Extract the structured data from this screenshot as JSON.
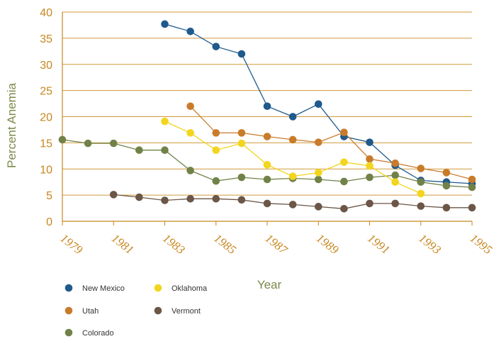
{
  "chart_data": {
    "type": "line",
    "title": "",
    "xlabel": "Year",
    "ylabel": "Percent Anemia",
    "xlim": [
      1979,
      1995
    ],
    "ylim": [
      0,
      40
    ],
    "x_ticks": [
      "1979",
      "1981",
      "1983",
      "1985",
      "1987",
      "1989",
      "1991",
      "1993",
      "1995"
    ],
    "y_ticks": [
      "0",
      "5",
      "10",
      "15",
      "20",
      "25",
      "30",
      "35",
      "40"
    ],
    "grid": "horizontal",
    "legend_position": "bottom-left",
    "series": [
      {
        "name": "New Mexico",
        "color": "#1f5a8c",
        "x": [
          1983,
          1984,
          1985,
          1986,
          1987,
          1988,
          1989,
          1990,
          1991,
          1992,
          1993,
          1994,
          1995
        ],
        "y": [
          37.7,
          36.3,
          33.4,
          32.0,
          22.0,
          20.0,
          22.4,
          16.2,
          15.1,
          10.7,
          7.8,
          7.5,
          7.2
        ]
      },
      {
        "name": "Utah",
        "color": "#c97b2a",
        "x": [
          1984,
          1985,
          1986,
          1987,
          1988,
          1989,
          1990,
          1991,
          1992,
          1993,
          1994,
          1995
        ],
        "y": [
          22.0,
          16.9,
          16.9,
          16.2,
          15.6,
          15.1,
          17.0,
          11.9,
          11.1,
          10.1,
          9.3,
          8.0
        ]
      },
      {
        "name": "Colorado",
        "color": "#718249",
        "x": [
          1979,
          1980,
          1981,
          1982,
          1983,
          1984,
          1985,
          1986,
          1987,
          1988,
          1989,
          1990,
          1991,
          1992,
          1993,
          1994,
          1995
        ],
        "y": [
          15.6,
          14.9,
          14.9,
          13.6,
          13.6,
          9.7,
          7.7,
          8.4,
          8.0,
          8.2,
          8.0,
          7.6,
          8.4,
          8.8,
          7.5,
          6.8,
          6.5
        ]
      },
      {
        "name": "Oklahoma",
        "color": "#f2d51e",
        "x": [
          1983,
          1984,
          1985,
          1986,
          1987,
          1988,
          1989,
          1990,
          1991,
          1992,
          1993
        ],
        "y": [
          19.1,
          16.9,
          13.6,
          14.9,
          10.8,
          8.6,
          9.3,
          11.3,
          10.6,
          7.5,
          5.3
        ]
      },
      {
        "name": "Vermont",
        "color": "#6b5647",
        "x": [
          1981,
          1982,
          1983,
          1984,
          1985,
          1986,
          1987,
          1988,
          1989,
          1990,
          1991,
          1992,
          1993,
          1994,
          1995
        ],
        "y": [
          5.1,
          4.6,
          4.0,
          4.3,
          4.3,
          4.1,
          3.4,
          3.2,
          2.8,
          2.4,
          3.4,
          3.4,
          2.9,
          2.6,
          2.6
        ]
      }
    ]
  }
}
